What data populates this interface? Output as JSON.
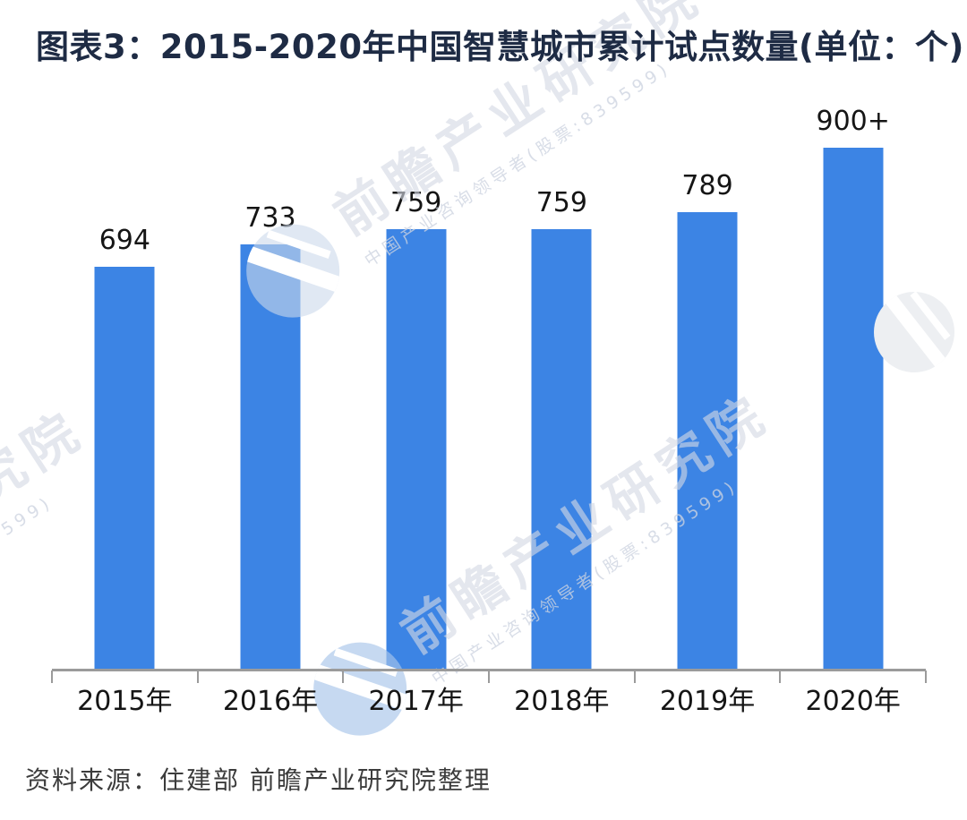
{
  "title": "图表3：2015-2020年中国智慧城市累计试点数量(单位：个)",
  "source": "资料来源：住建部 前瞻产业研究院整理",
  "watermark": {
    "brand_text": "前瞻产业研究院",
    "tagline": "中国产业咨询领导者(股票:839599)"
  },
  "colors": {
    "bar": "#3c84e4",
    "title_text": "#1e2b44",
    "axis": "#9b9b9b",
    "label_text": "#151515",
    "source_text": "#3c3c3c"
  },
  "chart_data": {
    "type": "bar",
    "title": "图表3：2015-2020年中国智慧城市累计试点数量(单位：个)",
    "categories": [
      "2015年",
      "2016年",
      "2017年",
      "2018年",
      "2019年",
      "2020年"
    ],
    "values": [
      694,
      733,
      759,
      759,
      789,
      900
    ],
    "value_labels": [
      "694",
      "733",
      "759",
      "759",
      "789",
      "900+"
    ],
    "xlabel": "",
    "ylabel": "单位：个",
    "ylim": [
      0,
      1000
    ],
    "grid": false,
    "legend": null,
    "bar_color": "#3c84e4",
    "source": "资料来源：住建部 前瞻产业研究院整理"
  }
}
